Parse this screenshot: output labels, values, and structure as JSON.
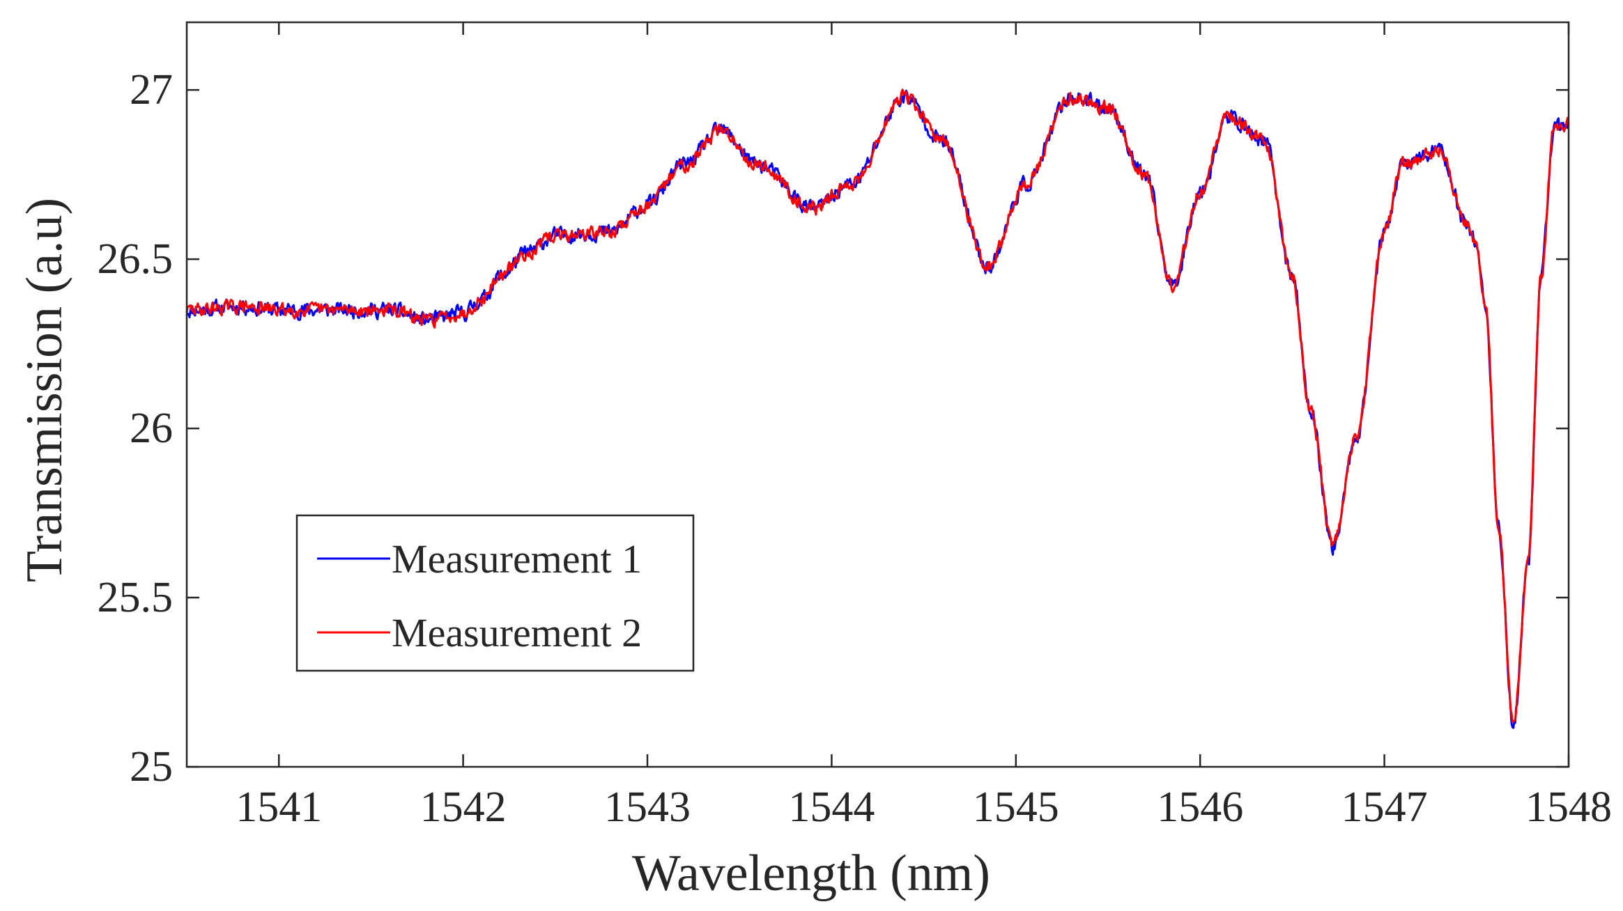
{
  "chart_data": {
    "type": "line",
    "title": "",
    "xlabel": "Wavelength (nm)",
    "ylabel": "Transmission (a.u)",
    "xlim": [
      1540.5,
      1548
    ],
    "ylim": [
      25,
      27.2
    ],
    "xticks": [
      1541,
      1542,
      1543,
      1544,
      1545,
      1546,
      1547,
      1548
    ],
    "yticks": [
      25,
      25.5,
      26,
      26.5,
      27
    ],
    "xtick_labels": [
      "1541",
      "1542",
      "1543",
      "1544",
      "1545",
      "1546",
      "1547",
      "1548"
    ],
    "ytick_labels": [
      "25",
      "25.5",
      "26",
      "26.5",
      "27"
    ],
    "grid": false,
    "legend_position": "lower-left",
    "series": [
      {
        "name": "Measurement 1",
        "color": "#0000ff",
        "noise": 0.035,
        "seed": 11
      },
      {
        "name": "Measurement 2",
        "color": "#ff0000",
        "noise": 0.03,
        "seed": 29
      }
    ],
    "envelope": {
      "x": [
        1540.5,
        1540.8,
        1541.0,
        1541.3,
        1541.6,
        1541.8,
        1542.0,
        1542.1,
        1542.2,
        1542.35,
        1542.5,
        1542.8,
        1543.0,
        1543.2,
        1543.4,
        1543.6,
        1543.9,
        1544.1,
        1544.4,
        1544.6,
        1544.85,
        1545.05,
        1545.3,
        1545.5,
        1545.7,
        1545.85,
        1546.0,
        1546.15,
        1546.35,
        1546.5,
        1546.6,
        1546.72,
        1546.85,
        1547.0,
        1547.1,
        1547.3,
        1547.45,
        1547.5,
        1547.55,
        1547.62,
        1547.7,
        1547.78,
        1547.85,
        1547.92,
        1548.0
      ],
      "y": [
        26.35,
        26.36,
        26.35,
        26.35,
        26.35,
        26.32,
        26.34,
        26.38,
        26.45,
        26.52,
        26.57,
        26.58,
        26.66,
        26.78,
        26.88,
        26.78,
        26.65,
        26.72,
        26.98,
        26.85,
        26.48,
        26.72,
        26.98,
        26.95,
        26.75,
        26.42,
        26.7,
        26.92,
        26.85,
        26.45,
        26.05,
        25.65,
        25.98,
        26.58,
        26.78,
        26.82,
        26.6,
        26.55,
        26.35,
        25.7,
        25.12,
        25.6,
        26.45,
        26.88,
        26.9
      ]
    }
  }
}
